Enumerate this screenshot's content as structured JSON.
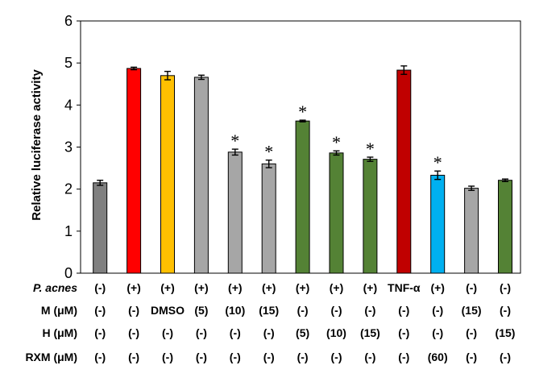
{
  "chart_data": {
    "type": "bar",
    "title": "",
    "xlabel": "",
    "ylabel": "Relative luciferase activity",
    "ylim": [
      0,
      6
    ],
    "yticks": [
      0,
      1,
      2,
      3,
      4,
      5,
      6
    ],
    "grid": false,
    "legend": "none",
    "values": [
      2.15,
      4.87,
      4.7,
      4.66,
      2.88,
      2.6,
      3.62,
      2.86,
      2.71,
      4.83,
      2.33,
      2.02,
      2.21
    ],
    "errors": [
      0.06,
      0.03,
      0.1,
      0.05,
      0.07,
      0.09,
      0.02,
      0.05,
      0.05,
      0.1,
      0.1,
      0.05,
      0.03
    ],
    "significant": [
      false,
      false,
      false,
      false,
      true,
      true,
      true,
      true,
      true,
      false,
      true,
      false,
      false
    ],
    "star_label": "*",
    "colors": [
      "#808080",
      "#ff0000",
      "#ffc000",
      "#a6a6a6",
      "#a6a6a6",
      "#a6a6a6",
      "#548235",
      "#548235",
      "#548235",
      "#c00000",
      "#00b0f0",
      "#a6a6a6",
      "#548235"
    ],
    "treatment_table": [
      {
        "label": "P. acnes",
        "italic": true,
        "cells": [
          "(-)",
          "(+)",
          "(+)",
          "(+)",
          "(+)",
          "(+)",
          "(+)",
          "(+)",
          "(+)",
          "TNF-α",
          "(+)",
          "(-)",
          "(-)"
        ]
      },
      {
        "label": "M (μM)",
        "italic": false,
        "cells": [
          "(-)",
          "(-)",
          "DMSO",
          "(5)",
          "(10)",
          "(15)",
          "(-)",
          "(-)",
          "(-)",
          "(-)",
          "(-)",
          "(15)",
          "(-)"
        ]
      },
      {
        "label": "H (μM)",
        "italic": false,
        "cells": [
          "(-)",
          "(-)",
          "(-)",
          "(-)",
          "(-)",
          "(-)",
          "(5)",
          "(10)",
          "(15)",
          "(-)",
          "(-)",
          "(-)",
          "(15)"
        ]
      },
      {
        "label": "RXM (μM)",
        "italic": false,
        "cells": [
          "(-)",
          "(-)",
          "(-)",
          "(-)",
          "(-)",
          "(-)",
          "(-)",
          "(-)",
          "(-)",
          "(-)",
          "(60)",
          "(-)",
          "(-)"
        ]
      }
    ]
  }
}
